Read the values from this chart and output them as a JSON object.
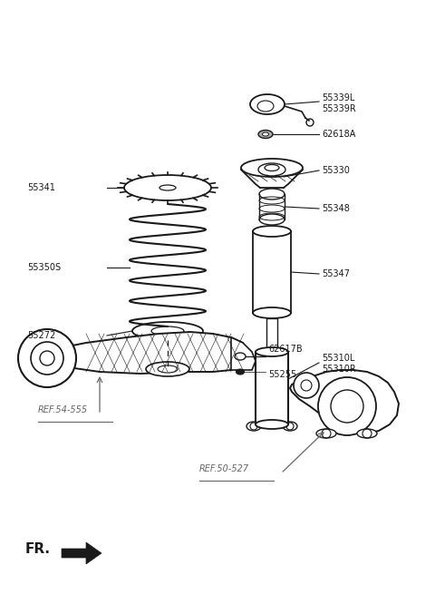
{
  "bg_color": "#ffffff",
  "lc": "#1a1a1a",
  "gc": "#666666",
  "figsize": [
    4.8,
    6.55
  ],
  "dpi": 100,
  "xlim": [
    0,
    480
  ],
  "ylim": [
    0,
    655
  ]
}
